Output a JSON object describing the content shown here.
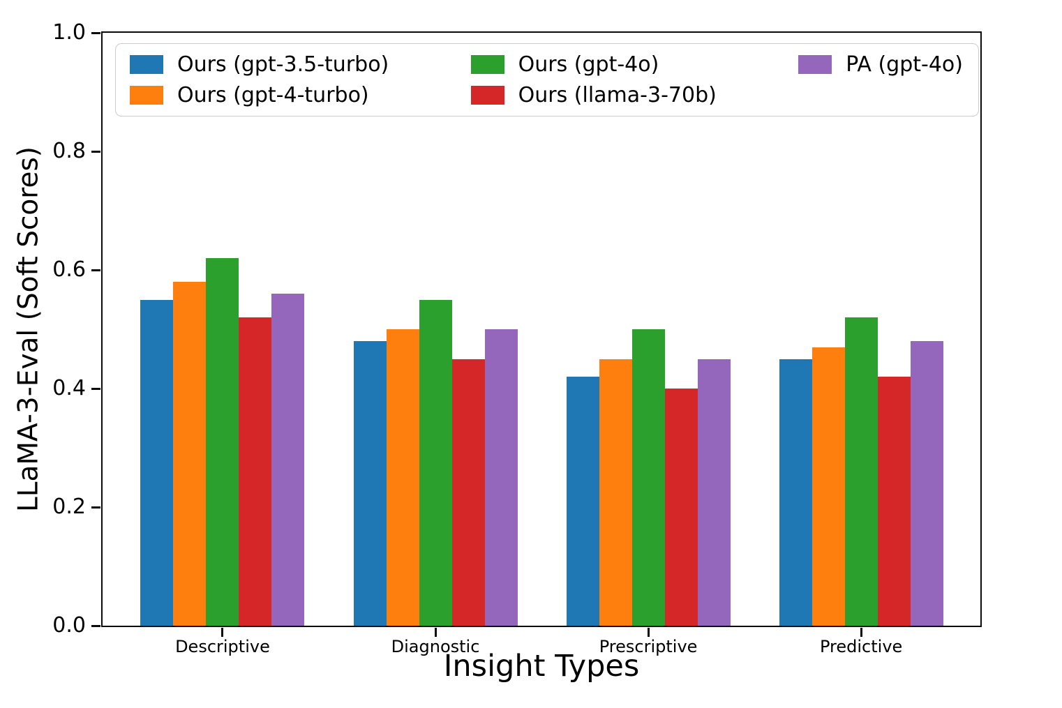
{
  "chart_data": {
    "type": "bar",
    "title": "",
    "xlabel": "Insight Types",
    "ylabel": "LLaMA-3-Eval (Soft Scores)",
    "categories": [
      "Descriptive",
      "Diagnostic",
      "Prescriptive",
      "Predictive"
    ],
    "series": [
      {
        "name": "Ours (gpt-3.5-turbo)",
        "color": "#1f77b4",
        "values": [
          0.55,
          0.48,
          0.42,
          0.45
        ]
      },
      {
        "name": "Ours (gpt-4-turbo)",
        "color": "#ff7f0e",
        "values": [
          0.58,
          0.5,
          0.45,
          0.47
        ]
      },
      {
        "name": "Ours (gpt-4o)",
        "color": "#2ca02c",
        "values": [
          0.62,
          0.55,
          0.5,
          0.52
        ]
      },
      {
        "name": "Ours (llama-3-70b)",
        "color": "#d62728",
        "values": [
          0.52,
          0.45,
          0.4,
          0.42
        ]
      },
      {
        "name": "PA (gpt-4o)",
        "color": "#9467bd",
        "values": [
          0.56,
          0.5,
          0.45,
          0.48
        ]
      }
    ],
    "ylim": [
      0.0,
      1.0
    ],
    "yticks": [
      "0.0",
      "0.2",
      "0.4",
      "0.6",
      "0.8",
      "1.0"
    ],
    "grid": false,
    "legend": {
      "position": "upper center inside plot, expanded width",
      "columns": 3,
      "entries": [
        "Ours (gpt-3.5-turbo)",
        "Ours (gpt-4-turbo)",
        "Ours (gpt-4o)",
        "Ours (llama-3-70b)",
        "PA (gpt-4o)"
      ]
    },
    "axis_color": "#0a0a0a"
  }
}
